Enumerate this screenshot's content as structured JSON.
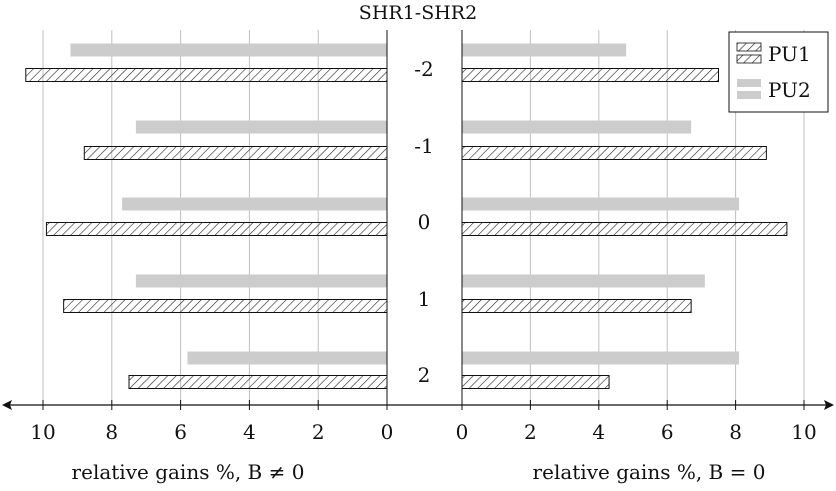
{
  "chart_data": {
    "type": "bar",
    "orientation": "horizontal",
    "title": "SHR1-SHR2",
    "categories": [
      "-2",
      "-1",
      "0",
      "1",
      "2"
    ],
    "legend": {
      "placement": "top-right",
      "entries": [
        "PU1",
        "PU2"
      ]
    },
    "grid": true,
    "panels": [
      {
        "xlabel": "relative gains %, B ≠ 0",
        "xlim": [
          0,
          10.5
        ],
        "reversed": true,
        "xticks": [
          "10",
          "8",
          "6",
          "4",
          "2",
          "0"
        ],
        "series": [
          {
            "name": "PU1",
            "values": [
              10.5,
              8.8,
              9.9,
              9.4,
              7.5
            ]
          },
          {
            "name": "PU2",
            "values": [
              9.2,
              7.3,
              7.7,
              7.3,
              5.8
            ]
          }
        ]
      },
      {
        "xlabel": "relative gains %, B = 0",
        "xlim": [
          0,
          10.7
        ],
        "reversed": false,
        "xticks": [
          "0",
          "2",
          "4",
          "6",
          "8",
          "10"
        ],
        "series": [
          {
            "name": "PU1",
            "values": [
              7.5,
              8.9,
              9.5,
              6.7,
              4.3
            ]
          },
          {
            "name": "PU2",
            "values": [
              4.8,
              6.7,
              8.1,
              7.1,
              8.1
            ]
          }
        ]
      }
    ],
    "colors": {
      "pu1_hatch": "#222222",
      "pu2_fill": "#cccccc",
      "grid": "#bfbfbf"
    }
  }
}
